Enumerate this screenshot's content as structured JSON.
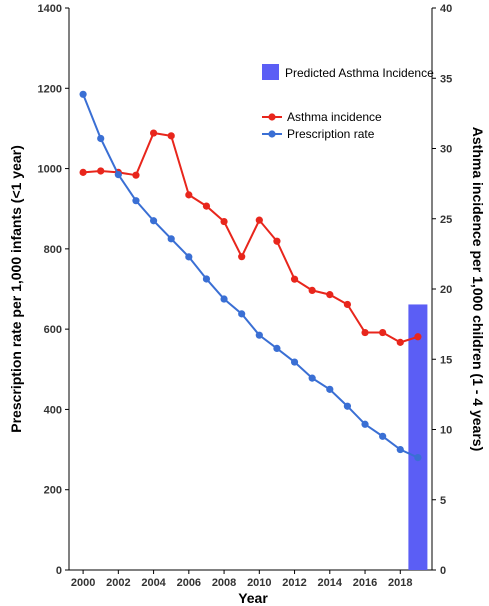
{
  "chart_data": {
    "type": "line",
    "xlabel": "Year",
    "ylabel_left": "Prescription rate per 1,000 infants (<1 year)",
    "ylabel_right": "Asthma incidence per 1,000 children (1 - 4 years)",
    "x_ticks": [
      "2000",
      "2002",
      "2004",
      "2006",
      "2008",
      "2010",
      "2012",
      "2014",
      "2016",
      "2018"
    ],
    "x_range": [
      1999.2,
      2019.8
    ],
    "y_left_range": [
      0,
      1400
    ],
    "y_left_ticks": [
      "0",
      "200",
      "400",
      "600",
      "800",
      "1000",
      "1200",
      "1400"
    ],
    "y_right_range": [
      0,
      40
    ],
    "y_right_ticks": [
      "0",
      "5",
      "10",
      "15",
      "20",
      "25",
      "30",
      "35",
      "40"
    ],
    "series": [
      {
        "name": "Asthma incidence",
        "axis": "right",
        "color": "#e8261c",
        "x": [
          2000,
          2001,
          2002,
          2003,
          2004,
          2005,
          2006,
          2007,
          2008,
          2009,
          2010,
          2011,
          2012,
          2013,
          2014,
          2015,
          2016,
          2017,
          2018,
          2019
        ],
        "values": [
          28.3,
          28.4,
          28.3,
          28.1,
          31.1,
          30.9,
          26.7,
          25.9,
          24.8,
          22.3,
          24.9,
          23.4,
          20.7,
          19.9,
          19.6,
          18.9,
          16.9,
          16.9,
          16.2,
          16.6
        ]
      },
      {
        "name": "Prescription rate",
        "axis": "left",
        "color": "#3a6fd4",
        "x": [
          2000,
          2001,
          2002,
          2003,
          2004,
          2005,
          2006,
          2007,
          2008,
          2009,
          2010,
          2011,
          2012,
          2013,
          2014,
          2015,
          2016,
          2017,
          2018,
          2019
        ],
        "values": [
          1185,
          1075,
          985,
          920,
          870,
          825,
          780,
          725,
          675,
          638,
          585,
          552,
          518,
          478,
          450,
          408,
          363,
          333,
          300,
          280
        ]
      }
    ],
    "bars": [
      {
        "name": "Predicted Asthma Incidence",
        "axis": "right",
        "color": "#5b5ef5",
        "x": 2019,
        "value": 18.9
      }
    ],
    "legend_position": "top-right",
    "grid": false
  }
}
